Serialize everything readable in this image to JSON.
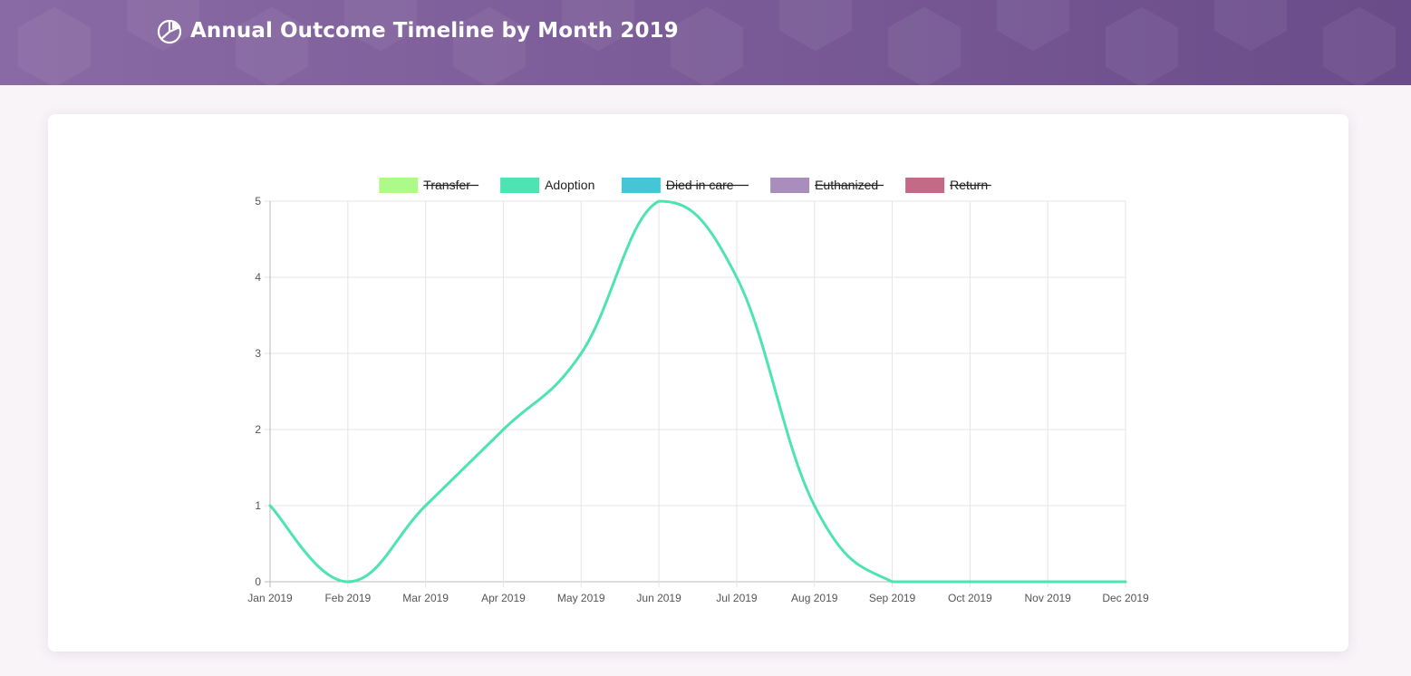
{
  "header": {
    "title": "Annual Outcome Timeline by Month 2019",
    "icon": "pie-chart-icon"
  },
  "colors": {
    "header_bg": "#7a5b97",
    "adoption_line": "#4de3b3"
  },
  "chart_data": {
    "type": "line",
    "title": "",
    "xlabel": "",
    "ylabel": "",
    "categories": [
      "Jan 2019",
      "Feb 2019",
      "Mar 2019",
      "Apr 2019",
      "May 2019",
      "Jun 2019",
      "Jul 2019",
      "Aug 2019",
      "Sep 2019",
      "Oct 2019",
      "Nov 2019",
      "Dec 2019"
    ],
    "ylim": [
      0,
      5
    ],
    "yticks": [
      "0",
      "1",
      "2",
      "3",
      "4",
      "5"
    ],
    "grid": true,
    "legend_position": "top",
    "legend": [
      {
        "name": "Transfer",
        "color": "#adfa8a",
        "hidden": true
      },
      {
        "name": "Adoption",
        "color": "#4de3b3",
        "hidden": false
      },
      {
        "name": "Died in care",
        "color": "#45c6d6",
        "hidden": true
      },
      {
        "name": "Euthanized",
        "color": "#a98dbd",
        "hidden": true
      },
      {
        "name": "Return",
        "color": "#c26a86",
        "hidden": true
      }
    ],
    "series": [
      {
        "name": "Adoption",
        "color": "#4de3b3",
        "values": [
          1,
          0,
          1,
          2,
          3,
          5,
          4,
          1,
          0,
          0,
          0,
          0
        ]
      }
    ]
  }
}
